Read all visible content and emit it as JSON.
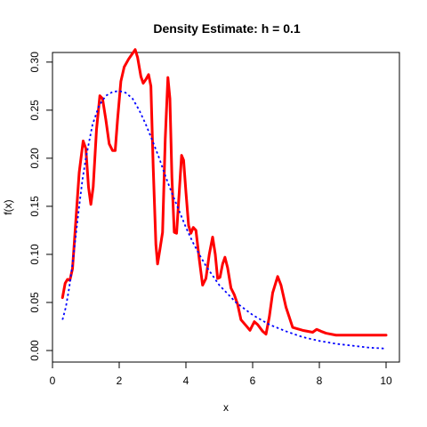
{
  "chart_data": {
    "type": "line",
    "title": "Density Estimate: h = 0.1",
    "xlabel": "x",
    "ylabel": "f(x)",
    "xlim": [
      0,
      10.4
    ],
    "ylim": [
      -0.012,
      0.31
    ],
    "x_ticks": [
      0,
      2,
      4,
      6,
      8,
      10
    ],
    "x_tick_labels": [
      "0",
      "2",
      "4",
      "6",
      "8",
      "10"
    ],
    "y_ticks": [
      0.0,
      0.05,
      0.1,
      0.15,
      0.2,
      0.25,
      0.3
    ],
    "y_tick_labels": [
      "0.00",
      "0.05",
      "0.10",
      "0.15",
      "0.20",
      "0.25",
      "0.30"
    ],
    "grid": false,
    "series": [
      {
        "color": "#ff0000",
        "style": "solid",
        "points": [
          [
            0.3,
            0.055
          ],
          [
            0.38,
            0.07
          ],
          [
            0.45,
            0.074
          ],
          [
            0.52,
            0.073
          ],
          [
            0.6,
            0.085
          ],
          [
            0.7,
            0.135
          ],
          [
            0.8,
            0.185
          ],
          [
            0.92,
            0.218
          ],
          [
            1.0,
            0.21
          ],
          [
            1.08,
            0.17
          ],
          [
            1.15,
            0.152
          ],
          [
            1.22,
            0.17
          ],
          [
            1.32,
            0.23
          ],
          [
            1.42,
            0.265
          ],
          [
            1.5,
            0.262
          ],
          [
            1.6,
            0.24
          ],
          [
            1.7,
            0.215
          ],
          [
            1.8,
            0.208
          ],
          [
            1.88,
            0.208
          ],
          [
            1.95,
            0.24
          ],
          [
            2.05,
            0.28
          ],
          [
            2.15,
            0.295
          ],
          [
            2.28,
            0.303
          ],
          [
            2.38,
            0.308
          ],
          [
            2.48,
            0.313
          ],
          [
            2.55,
            0.305
          ],
          [
            2.65,
            0.285
          ],
          [
            2.72,
            0.278
          ],
          [
            2.8,
            0.282
          ],
          [
            2.88,
            0.287
          ],
          [
            2.95,
            0.275
          ],
          [
            3.02,
            0.19
          ],
          [
            3.1,
            0.11
          ],
          [
            3.15,
            0.09
          ],
          [
            3.22,
            0.105
          ],
          [
            3.3,
            0.123
          ],
          [
            3.38,
            0.22
          ],
          [
            3.46,
            0.284
          ],
          [
            3.52,
            0.262
          ],
          [
            3.58,
            0.18
          ],
          [
            3.65,
            0.123
          ],
          [
            3.72,
            0.122
          ],
          [
            3.8,
            0.165
          ],
          [
            3.87,
            0.203
          ],
          [
            3.93,
            0.198
          ],
          [
            4.0,
            0.165
          ],
          [
            4.08,
            0.13
          ],
          [
            4.15,
            0.122
          ],
          [
            4.22,
            0.128
          ],
          [
            4.3,
            0.125
          ],
          [
            4.4,
            0.095
          ],
          [
            4.5,
            0.068
          ],
          [
            4.6,
            0.075
          ],
          [
            4.7,
            0.1
          ],
          [
            4.8,
            0.118
          ],
          [
            4.88,
            0.1
          ],
          [
            4.95,
            0.075
          ],
          [
            5.02,
            0.076
          ],
          [
            5.1,
            0.09
          ],
          [
            5.17,
            0.097
          ],
          [
            5.25,
            0.086
          ],
          [
            5.35,
            0.065
          ],
          [
            5.45,
            0.058
          ],
          [
            5.55,
            0.048
          ],
          [
            5.65,
            0.032
          ],
          [
            5.8,
            0.026
          ],
          [
            5.92,
            0.021
          ],
          [
            6.05,
            0.03
          ],
          [
            6.15,
            0.027
          ],
          [
            6.3,
            0.02
          ],
          [
            6.4,
            0.017
          ],
          [
            6.5,
            0.035
          ],
          [
            6.6,
            0.06
          ],
          [
            6.75,
            0.077
          ],
          [
            6.85,
            0.068
          ],
          [
            7.0,
            0.045
          ],
          [
            7.2,
            0.024
          ],
          [
            7.5,
            0.021
          ],
          [
            7.8,
            0.019
          ],
          [
            7.92,
            0.022
          ],
          [
            8.05,
            0.02
          ],
          [
            8.2,
            0.018
          ],
          [
            8.5,
            0.016
          ],
          [
            9.0,
            0.016
          ],
          [
            9.5,
            0.016
          ],
          [
            10.0,
            0.016
          ]
        ]
      },
      {
        "color": "#0000ff",
        "style": "dotted",
        "points": [
          [
            0.3,
            0.032
          ],
          [
            0.4,
            0.045
          ],
          [
            0.5,
            0.065
          ],
          [
            0.6,
            0.09
          ],
          [
            0.7,
            0.12
          ],
          [
            0.8,
            0.15
          ],
          [
            0.9,
            0.178
          ],
          [
            1.0,
            0.2
          ],
          [
            1.2,
            0.235
          ],
          [
            1.4,
            0.255
          ],
          [
            1.6,
            0.265
          ],
          [
            1.8,
            0.269
          ],
          [
            2.0,
            0.27
          ],
          [
            2.2,
            0.268
          ],
          [
            2.4,
            0.262
          ],
          [
            2.6,
            0.25
          ],
          [
            2.8,
            0.235
          ],
          [
            3.0,
            0.218
          ],
          [
            3.2,
            0.2
          ],
          [
            3.4,
            0.18
          ],
          [
            3.6,
            0.162
          ],
          [
            3.8,
            0.145
          ],
          [
            4.0,
            0.128
          ],
          [
            4.2,
            0.113
          ],
          [
            4.4,
            0.1
          ],
          [
            4.6,
            0.088
          ],
          [
            4.8,
            0.078
          ],
          [
            5.0,
            0.068
          ],
          [
            5.5,
            0.05
          ],
          [
            6.0,
            0.037
          ],
          [
            6.5,
            0.027
          ],
          [
            7.0,
            0.02
          ],
          [
            7.5,
            0.014
          ],
          [
            8.0,
            0.01
          ],
          [
            8.5,
            0.007
          ],
          [
            9.0,
            0.005
          ],
          [
            9.5,
            0.003
          ],
          [
            10.0,
            0.002
          ]
        ]
      }
    ]
  }
}
